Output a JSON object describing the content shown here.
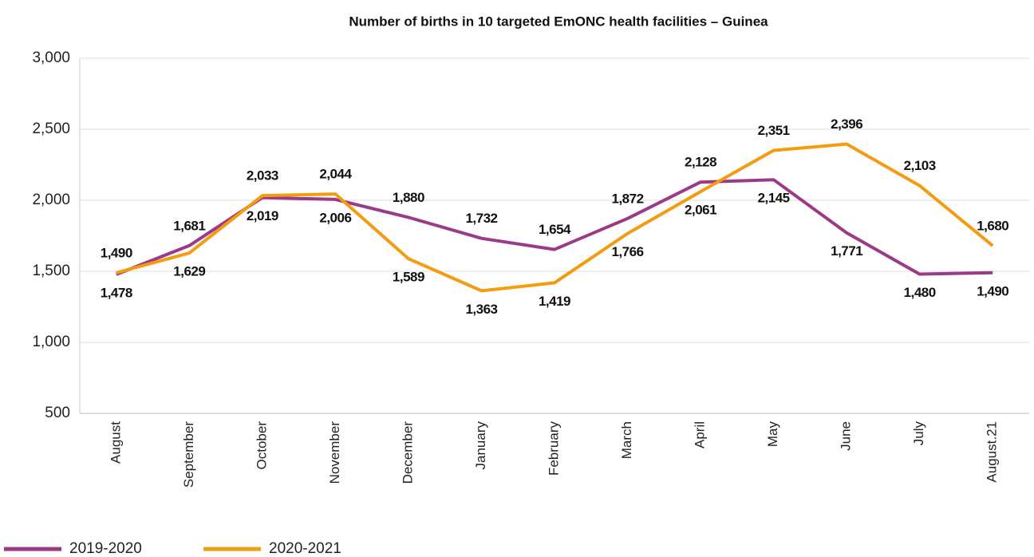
{
  "chart_data": {
    "type": "line",
    "title": "Number of births in 10 targeted EmONC health facilities – Guinea",
    "categories": [
      "August",
      "September",
      "October",
      "November",
      "December",
      "January",
      "February",
      "March",
      "April",
      "May",
      "June",
      "July",
      "August.21"
    ],
    "series": [
      {
        "name": "2019-2020",
        "color": "#9b3b87",
        "values": [
          1478,
          1681,
          2019,
          2006,
          1880,
          1732,
          1654,
          1872,
          2128,
          2145,
          1771,
          1480,
          1490
        ],
        "value_labels": [
          "1,478",
          "1,681",
          "2,019",
          "2,006",
          "1,880",
          "1,732",
          "1,654",
          "1,872",
          "2,128",
          "2,145",
          "1,771",
          "1,480",
          "1,490"
        ]
      },
      {
        "name": "2020-2021",
        "color": "#f39c12",
        "values": [
          1490,
          1629,
          2033,
          2044,
          1589,
          1363,
          1419,
          1766,
          2061,
          2351,
          2396,
          2103,
          1680
        ],
        "value_labels": [
          "1,490",
          "1,629",
          "2,033",
          "2,044",
          "1,589",
          "1,363",
          "1,419",
          "1,766",
          "2,061",
          "2,351",
          "2,396",
          "2,103",
          "1,680"
        ]
      }
    ],
    "ylim": [
      500,
      3000
    ],
    "yticks": [
      500,
      {
        "value": 1000,
        "label": "1,000"
      },
      {
        "value": 1500,
        "label": "1,500"
      },
      {
        "value": 2000,
        "label": "2,000"
      },
      {
        "value": 2500,
        "label": "2,500"
      },
      {
        "value": 3000,
        "label": "3,000"
      }
    ],
    "grid": true
  }
}
